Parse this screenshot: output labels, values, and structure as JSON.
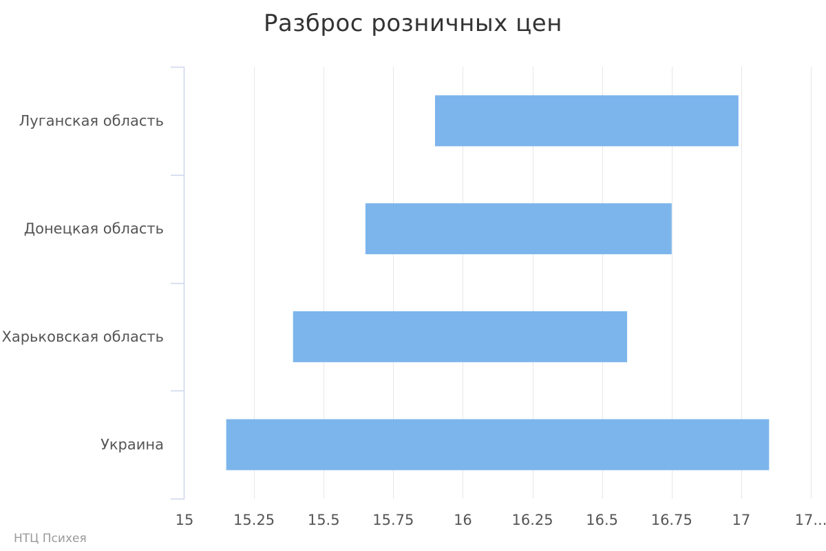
{
  "chart_data": {
    "type": "bar",
    "orientation": "horizontal",
    "subtype": "floating-range",
    "title": "Разброс розничных цен",
    "categories": [
      "Луганская область",
      "Донецкая область",
      "Харьковская область",
      "Украина"
    ],
    "series": [
      {
        "low": [
          15.9,
          15.65,
          15.39,
          15.15
        ],
        "high": [
          16.99,
          16.75,
          16.59,
          17.1
        ]
      }
    ],
    "xlim": [
      15,
      17.25
    ],
    "x_ticks": [
      15,
      15.25,
      15.5,
      15.75,
      16,
      16.25,
      16.5,
      16.75,
      17,
      17.25
    ],
    "x_tick_labels": [
      "15",
      "15.25",
      "15.5",
      "15.75",
      "16",
      "16.25",
      "16.5",
      "16.75",
      "17",
      "17..."
    ],
    "grid": true,
    "bar_color": "#7cb5ec",
    "grid_color": "#e6e6e6",
    "axis_color": "#ccd6eb"
  },
  "credits": "НТЦ Психея"
}
